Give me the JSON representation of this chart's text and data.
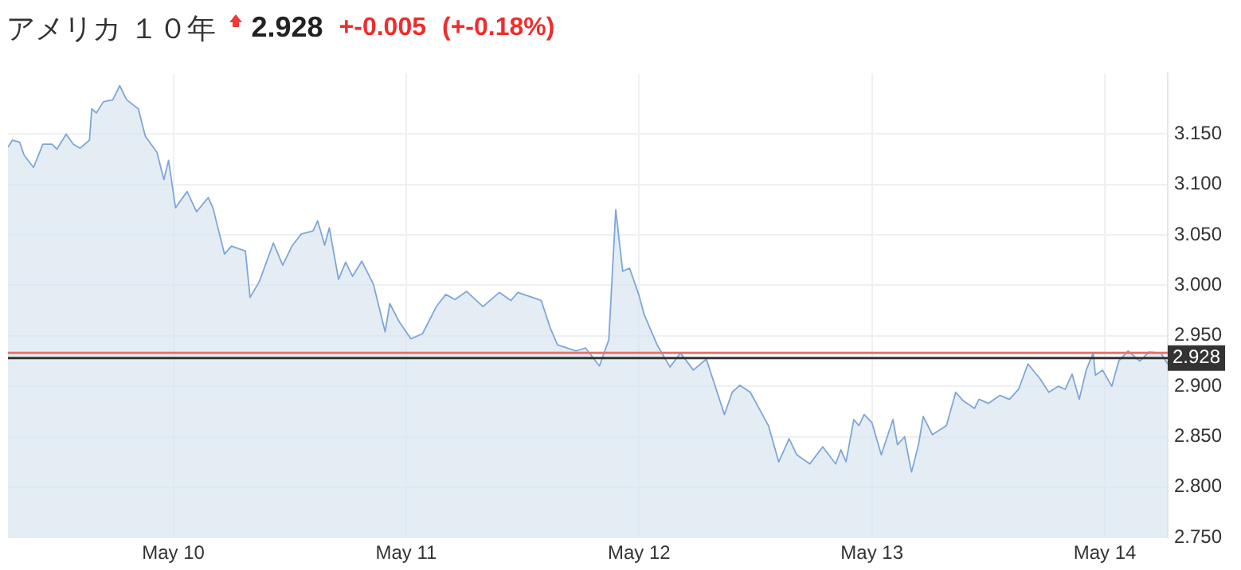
{
  "chart_data": {
    "type": "area",
    "title": "アメリカ １０年",
    "annotations": [
      "2.928",
      "+-0.005",
      "(+-0.18%)"
    ],
    "x": [
      "--05-09T06:58",
      "--05-09T07:26",
      "--05-09T08:10",
      "--05-09T08:38",
      "--05-09T09:36",
      "--05-09T10:34",
      "--05-09T11:31",
      "--05-09T12:00",
      "--05-09T12:58",
      "--05-09T13:41",
      "--05-09T14:24",
      "--05-09T15:22",
      "--05-09T15:36",
      "--05-09T16:05",
      "--05-09T16:48",
      "--05-09T17:46",
      "--05-09T18:29",
      "--05-09T19:12",
      "--05-09T20:24",
      "--05-09T21:07",
      "--05-09T22:19",
      "--05-09T23:02",
      "--05-09T23:31",
      "--05-10T00:14",
      "--05-10T01:26",
      "--05-10T02:24",
      "--05-10T03:36",
      "--05-10T04:05",
      "--05-10T05:17",
      "--05-10T06:00",
      "--05-10T07:26",
      "--05-10T07:55",
      "--05-10T08:53",
      "--05-10T10:19",
      "--05-10T11:17",
      "--05-10T12:14",
      "--05-10T13:12",
      "--05-10T14:24",
      "--05-10T14:53",
      "--05-10T15:36",
      "--05-10T16:05",
      "--05-10T17:02",
      "--05-10T17:46",
      "--05-10T18:29",
      "--05-10T19:26",
      "--05-10T20:38",
      "--05-10T21:50",
      "--05-10T22:19",
      "--05-10T23:17",
      "--05-11T00:29",
      "--05-11T01:41",
      "--05-11T03:07",
      "--05-11T04:05",
      "--05-11T05:02",
      "--05-11T06:14",
      "--05-11T07:55",
      "--05-11T09:36",
      "--05-11T10:48",
      "--05-11T11:31",
      "--05-11T13:55",
      "--05-11T14:53",
      "--05-11T15:36",
      "--05-11T17:31",
      "--05-11T18:29",
      "--05-11T19:55",
      "--05-11T20:53",
      "--05-11T21:36",
      "--05-11T22:19",
      "--05-11T23:02",
      "--05-12T00:00",
      "--05-12T00:32",
      "--05-12T01:52",
      "--05-12T03:12",
      "--05-12T04:16",
      "--05-12T05:36",
      "--05-12T06:56",
      "--05-12T08:48",
      "--05-12T09:36",
      "--05-12T10:24",
      "--05-12T11:28",
      "--05-12T13:20",
      "--05-12T14:24",
      "--05-12T15:28",
      "--05-12T16:16",
      "--05-12T17:36",
      "--05-12T18:56",
      "--05-12T20:16",
      "--05-12T20:48",
      "--05-12T21:20",
      "--05-12T22:08",
      "--05-12T22:40",
      "--05-12T23:12",
      "--05-13T00:00",
      "--05-13T00:58",
      "--05-13T02:10",
      "--05-13T02:38",
      "--05-13T03:22",
      "--05-13T04:05",
      "--05-13T04:48",
      "--05-13T05:17",
      "--05-13T06:14",
      "--05-13T07:41",
      "--05-13T08:38",
      "--05-13T09:22",
      "--05-13T10:34",
      "--05-13T11:02",
      "--05-13T12:00",
      "--05-13T13:12",
      "--05-13T14:10",
      "--05-13T15:07",
      "--05-13T16:05",
      "--05-13T17:17",
      "--05-13T18:14",
      "--05-13T19:12",
      "--05-13T19:55",
      "--05-13T20:38",
      "--05-13T21:22",
      "--05-13T22:05",
      "--05-13T22:48",
      "--05-13T23:02",
      "--05-13T23:46",
      "--05-14T00:43",
      "--05-14T01:26",
      "--05-14T02:24",
      "--05-14T03:36",
      "--05-14T04:34",
      "--05-14T05:46",
      "--05-14T06:29"
    ],
    "series": [
      {
        "color": "#7ea6d8",
        "values": [
          3.137,
          3.144,
          3.142,
          3.129,
          3.117,
          3.14,
          3.14,
          3.135,
          3.15,
          3.14,
          3.136,
          3.144,
          3.175,
          3.171,
          3.182,
          3.184,
          3.198,
          3.184,
          3.175,
          3.148,
          3.132,
          3.105,
          3.124,
          3.077,
          3.093,
          3.073,
          3.087,
          3.077,
          3.031,
          3.039,
          3.034,
          2.988,
          3.004,
          3.042,
          3.02,
          3.039,
          3.051,
          3.054,
          3.064,
          3.04,
          3.057,
          3.006,
          3.023,
          3.009,
          3.024,
          3.001,
          2.954,
          2.982,
          2.964,
          2.947,
          2.952,
          2.979,
          2.991,
          2.986,
          2.994,
          2.979,
          2.993,
          2.985,
          2.993,
          2.985,
          2.957,
          2.941,
          2.935,
          2.938,
          2.92,
          2.946,
          3.075,
          3.014,
          3.017,
          2.99,
          2.971,
          2.941,
          2.919,
          2.933,
          2.916,
          2.927,
          2.872,
          2.894,
          2.901,
          2.894,
          2.861,
          2.825,
          2.848,
          2.832,
          2.823,
          2.84,
          2.823,
          2.837,
          2.825,
          2.867,
          2.861,
          2.872,
          2.864,
          2.832,
          2.867,
          2.842,
          2.85,
          2.815,
          2.842,
          2.87,
          2.852,
          2.861,
          2.894,
          2.886,
          2.878,
          2.887,
          2.883,
          2.891,
          2.887,
          2.897,
          2.922,
          2.908,
          2.894,
          2.9,
          2.897,
          2.912,
          2.887,
          2.916,
          2.933,
          2.911,
          2.916,
          2.9,
          2.925,
          2.935,
          2.925,
          2.934,
          2.933,
          2.922
        ]
      }
    ],
    "xlim": [
      "--05-09T06:58",
      "--05-14T06:29"
    ],
    "xticks": [
      {
        "value": "--05-10",
        "label": "May 10"
      },
      {
        "value": "--05-11",
        "label": "May 11"
      },
      {
        "value": "--05-12",
        "label": "May 12"
      },
      {
        "value": "--05-13",
        "label": "May 13"
      },
      {
        "value": "--05-14",
        "label": "May 14"
      }
    ],
    "ylim": [
      2.75,
      3.21
    ],
    "yticks": [
      {
        "value": 2.75,
        "label": "2.750"
      },
      {
        "value": 2.8,
        "label": "2.800"
      },
      {
        "value": 2.85,
        "label": "2.850"
      },
      {
        "value": 2.9,
        "label": "2.900"
      },
      {
        "value": 2.95,
        "label": "2.950"
      },
      {
        "value": 3.0,
        "label": "3.000"
      },
      {
        "value": 3.05,
        "label": "3.050"
      },
      {
        "value": 3.1,
        "label": "3.100"
      },
      {
        "value": 3.15,
        "label": "3.150"
      }
    ],
    "ref_lines": [
      {
        "axis": "y",
        "value": 2.933,
        "color": "#e8746e"
      },
      {
        "axis": "y",
        "value": 2.928,
        "label": "2.928",
        "color": "#333333"
      }
    ],
    "grid": true,
    "legend": false
  }
}
